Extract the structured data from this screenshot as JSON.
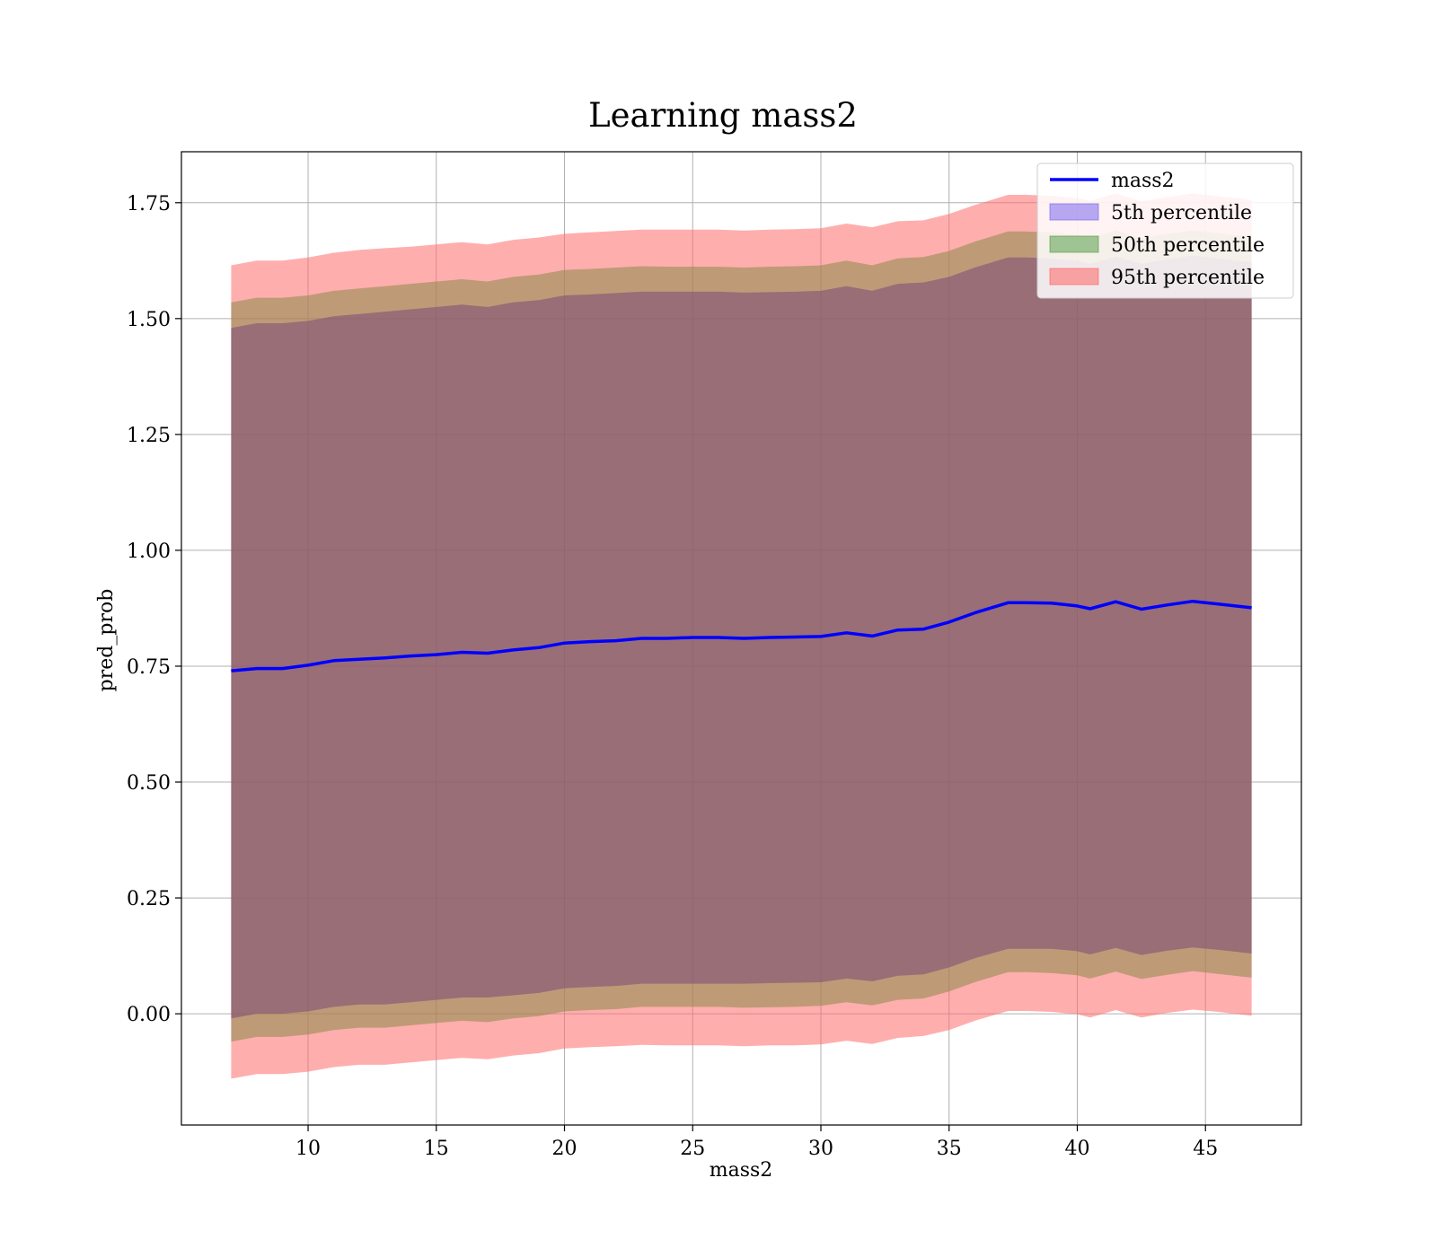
{
  "chart_data": {
    "type": "line",
    "title": "Learning mass2",
    "xlabel": "mass2",
    "ylabel": "pred_prob",
    "xlim": [
      5.06,
      48.74
    ],
    "ylim": [
      -0.24,
      1.86
    ],
    "xticks": [
      10,
      15,
      20,
      25,
      30,
      35,
      40,
      45
    ],
    "xtick_labels": [
      "10",
      "15",
      "20",
      "25",
      "30",
      "35",
      "40",
      "45"
    ],
    "yticks": [
      0.0,
      0.25,
      0.5,
      0.75,
      1.0,
      1.25,
      1.5,
      1.75
    ],
    "ytick_labels": [
      "0.00",
      "0.25",
      "0.50",
      "0.75",
      "1.00",
      "1.25",
      "1.50",
      "1.75"
    ],
    "grid": true,
    "legend_position": "upper right",
    "line_color": "#0000ff",
    "band_colors": {
      "p5": "#7b68ee",
      "p50": "#5a9e4b",
      "p95": "#ff6666"
    },
    "background_fill_color": "#a07078",
    "x": [
      7.0,
      8.0,
      9.0,
      10.0,
      11.0,
      12.0,
      13.0,
      14.0,
      15.0,
      16.0,
      17.0,
      18.0,
      19.0,
      20.0,
      21.0,
      22.0,
      23.0,
      24.0,
      25.0,
      26.0,
      27.0,
      28.0,
      29.0,
      30.0,
      31.0,
      32.0,
      33.0,
      34.0,
      35.0,
      36.0,
      37.3,
      38.0,
      39.0,
      40.0,
      40.5,
      41.5,
      42.5,
      43.5,
      44.5,
      45.5,
      46.8
    ],
    "series": [
      {
        "name": "mass2",
        "values": [
          0.74,
          0.745,
          0.745,
          0.752,
          0.762,
          0.765,
          0.768,
          0.772,
          0.775,
          0.78,
          0.778,
          0.785,
          0.79,
          0.8,
          0.803,
          0.805,
          0.81,
          0.81,
          0.812,
          0.812,
          0.81,
          0.812,
          0.813,
          0.814,
          0.822,
          0.815,
          0.828,
          0.83,
          0.845,
          0.865,
          0.887,
          0.887,
          0.886,
          0.88,
          0.874,
          0.889,
          0.873,
          0.882,
          0.89,
          0.884,
          0.876
        ]
      },
      {
        "name": "5th percentile",
        "lower": [
          -0.01,
          0.0,
          0.0,
          0.005,
          0.015,
          0.02,
          0.02,
          0.025,
          0.03,
          0.035,
          0.035,
          0.04,
          0.045,
          0.055,
          0.058,
          0.06,
          0.065,
          0.065,
          0.065,
          0.065,
          0.065,
          0.066,
          0.067,
          0.068,
          0.076,
          0.07,
          0.082,
          0.085,
          0.1,
          0.12,
          0.14,
          0.14,
          0.14,
          0.135,
          0.128,
          0.142,
          0.127,
          0.136,
          0.143,
          0.138,
          0.13
        ],
        "upper": [
          1.48,
          1.49,
          1.49,
          1.495,
          1.505,
          1.51,
          1.515,
          1.52,
          1.525,
          1.53,
          1.525,
          1.535,
          1.54,
          1.55,
          1.552,
          1.555,
          1.558,
          1.558,
          1.558,
          1.558,
          1.556,
          1.557,
          1.558,
          1.56,
          1.57,
          1.56,
          1.575,
          1.578,
          1.59,
          1.61,
          1.632,
          1.632,
          1.63,
          1.625,
          1.618,
          1.634,
          1.618,
          1.628,
          1.636,
          1.63,
          1.622
        ]
      },
      {
        "name": "50th percentile",
        "lower": [
          -0.06,
          -0.05,
          -0.05,
          -0.045,
          -0.035,
          -0.03,
          -0.03,
          -0.025,
          -0.02,
          -0.015,
          -0.018,
          -0.01,
          -0.005,
          0.005,
          0.008,
          0.01,
          0.015,
          0.015,
          0.015,
          0.015,
          0.013,
          0.014,
          0.015,
          0.017,
          0.025,
          0.018,
          0.03,
          0.033,
          0.048,
          0.068,
          0.09,
          0.09,
          0.088,
          0.083,
          0.076,
          0.091,
          0.075,
          0.084,
          0.092,
          0.086,
          0.078
        ],
        "upper": [
          1.535,
          1.545,
          1.545,
          1.55,
          1.56,
          1.565,
          1.57,
          1.575,
          1.58,
          1.585,
          1.58,
          1.59,
          1.595,
          1.605,
          1.607,
          1.61,
          1.613,
          1.612,
          1.612,
          1.612,
          1.61,
          1.612,
          1.613,
          1.615,
          1.625,
          1.615,
          1.63,
          1.633,
          1.646,
          1.666,
          1.688,
          1.688,
          1.686,
          1.68,
          1.674,
          1.69,
          1.673,
          1.683,
          1.69,
          1.684,
          1.676
        ]
      },
      {
        "name": "95th percentile",
        "lower": [
          -0.14,
          -0.13,
          -0.13,
          -0.125,
          -0.115,
          -0.11,
          -0.11,
          -0.105,
          -0.1,
          -0.095,
          -0.098,
          -0.09,
          -0.085,
          -0.075,
          -0.072,
          -0.07,
          -0.067,
          -0.068,
          -0.068,
          -0.068,
          -0.07,
          -0.068,
          -0.068,
          -0.066,
          -0.058,
          -0.065,
          -0.052,
          -0.048,
          -0.035,
          -0.015,
          0.006,
          0.006,
          0.004,
          -0.001,
          -0.008,
          0.008,
          -0.008,
          0.002,
          0.009,
          0.004,
          -0.004
        ],
        "upper": [
          1.615,
          1.625,
          1.625,
          1.632,
          1.642,
          1.648,
          1.652,
          1.655,
          1.66,
          1.665,
          1.66,
          1.67,
          1.675,
          1.683,
          1.686,
          1.689,
          1.692,
          1.692,
          1.692,
          1.692,
          1.69,
          1.692,
          1.693,
          1.695,
          1.705,
          1.697,
          1.71,
          1.712,
          1.726,
          1.745,
          1.767,
          1.767,
          1.765,
          1.76,
          1.754,
          1.77,
          1.753,
          1.762,
          1.77,
          1.764,
          1.756
        ]
      }
    ]
  }
}
